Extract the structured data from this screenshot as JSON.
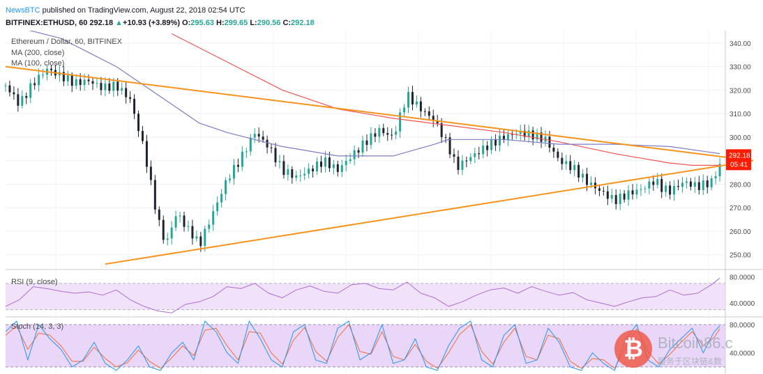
{
  "header": {
    "publisher": "NewsBTC",
    "published_text": " published on TradingView.com, August 22, 2018 02:54 UTC",
    "symbol": "BITFINEX:ETHUSD, 60",
    "last": "292.18",
    "change_arrow": "▲",
    "change": "+10.93 (+3.89%)",
    "o_label": "O:",
    "o_value": "295.63",
    "h_label": "H:",
    "h_value": "299.65",
    "l_label": "L:",
    "l_value": "290.56",
    "c_label": "C:",
    "c_value": "292.18"
  },
  "legend": {
    "title": "Ethereum / Dollar, 60, BITFINEX",
    "ma200": "MA (200, close)",
    "ma100": "MA (100, close)"
  },
  "indicators": {
    "rsi_label": "RSI (9, close)",
    "stoch_label": "Stoch (14, 3, 3)"
  },
  "price_tag": {
    "value": "292.18",
    "countdown": "05:41"
  },
  "watermark": {
    "text": "Bitcoin86.c",
    "subtext": "服务于区块链&数"
  },
  "colors": {
    "up_candle": "#26a69a",
    "down_candle": "#1f2330",
    "ma200": "#ef5350",
    "ma100": "#7b7bc7",
    "trendline": "#f7931a",
    "rsi_line": "#b06ad9",
    "rsi_band": "#e9d5f7",
    "stoch_k": "#2196f3",
    "stoch_d": "#ef6c3a",
    "stoch_band": "#e1c4f5",
    "price_tag": "#ff1a00",
    "grid": "#eef0f3"
  },
  "chart_data": [
    {
      "type": "line",
      "title": "Ethereum / Dollar, 60, BITFINEX",
      "y_axis_ticks": [
        "250.00",
        "260.00",
        "270.00",
        "280.00",
        "290.00",
        "300.00",
        "310.00",
        "320.00",
        "330.00",
        "340.00"
      ],
      "ylim": [
        244,
        345
      ],
      "x_index_range": [
        0,
        260
      ],
      "grid": true,
      "series": [
        {
          "name": "Ethereum / Dollar",
          "x": [
            0,
            5,
            10,
            15,
            20,
            25,
            30,
            35,
            40,
            45,
            50,
            55,
            58,
            60,
            62,
            65,
            68,
            70,
            75,
            80,
            85,
            90,
            95,
            100,
            105,
            110,
            115,
            120,
            125,
            130,
            135,
            140,
            145,
            150,
            155,
            160,
            163,
            166,
            170,
            175,
            180,
            185,
            190,
            195,
            200,
            205,
            210,
            215,
            220,
            225,
            230,
            235,
            236,
            240,
            245,
            250,
            255,
            258,
            260
          ],
          "y": [
            322,
            314,
            323,
            329,
            326,
            323,
            324,
            321,
            322,
            316,
            295,
            265,
            254,
            262,
            268,
            262,
            258,
            254,
            268,
            282,
            291,
            302,
            296,
            286,
            283,
            286,
            290,
            286,
            292,
            298,
            303,
            300,
            318,
            312,
            307,
            296,
            287,
            290,
            293,
            297,
            300,
            302,
            301,
            299,
            290,
            287,
            281,
            277,
            273,
            276,
            278,
            282,
            279,
            277,
            281,
            279,
            281,
            288,
            297
          ]
        },
        {
          "name": "MA (200, close)",
          "x": [
            60,
            80,
            100,
            120,
            140,
            160,
            180,
            200,
            220,
            240,
            248,
            258
          ],
          "y": [
            344,
            332,
            320,
            312,
            308,
            305,
            302,
            298,
            293,
            289,
            288,
            288
          ]
        },
        {
          "name": "MA (100, close)",
          "x": [
            0,
            20,
            40,
            60,
            70,
            80,
            100,
            120,
            140,
            155,
            160,
            180,
            200,
            220,
            240,
            258
          ],
          "y": [
            348,
            342,
            330,
            314,
            306,
            302,
            296,
            292,
            292,
            297,
            299,
            299,
            297,
            297,
            296,
            293
          ]
        },
        {
          "name": "Upper trendline",
          "x": [
            0,
            270
          ],
          "y": [
            330,
            290
          ]
        },
        {
          "name": "Lower trendline",
          "x": [
            36,
            270
          ],
          "y": [
            246,
            290
          ]
        }
      ],
      "last_price": 292.18
    },
    {
      "type": "line",
      "title": "RSI (9, close)",
      "y_axis_ticks": [
        "40.0000",
        "80.0000"
      ],
      "ylim": [
        20,
        90
      ],
      "band": [
        30,
        70
      ],
      "series": [
        {
          "name": "RSI",
          "x": [
            0,
            5,
            10,
            15,
            20,
            25,
            30,
            35,
            40,
            45,
            50,
            55,
            60,
            65,
            70,
            75,
            80,
            85,
            90,
            95,
            100,
            105,
            110,
            115,
            120,
            125,
            130,
            135,
            140,
            145,
            150,
            155,
            160,
            165,
            170,
            175,
            180,
            185,
            190,
            195,
            200,
            205,
            210,
            215,
            220,
            225,
            230,
            235,
            240,
            245,
            250,
            255,
            258
          ],
          "y": [
            35,
            45,
            65,
            62,
            58,
            55,
            57,
            52,
            60,
            45,
            35,
            28,
            25,
            38,
            42,
            50,
            65,
            62,
            70,
            55,
            48,
            60,
            66,
            58,
            55,
            68,
            70,
            62,
            60,
            72,
            55,
            48,
            35,
            42,
            52,
            60,
            63,
            55,
            65,
            58,
            52,
            56,
            45,
            40,
            35,
            42,
            48,
            50,
            60,
            52,
            55,
            68,
            78
          ]
        }
      ]
    },
    {
      "type": "line",
      "title": "Stoch (14, 3, 3)",
      "y_axis_ticks": [
        "40.0000",
        "80.0000"
      ],
      "ylim": [
        10,
        90
      ],
      "band": [
        20,
        80
      ],
      "series": [
        {
          "name": "K",
          "x": [
            0,
            4,
            8,
            12,
            16,
            20,
            24,
            28,
            32,
            36,
            40,
            44,
            48,
            52,
            56,
            60,
            64,
            68,
            72,
            76,
            80,
            84,
            88,
            92,
            96,
            100,
            104,
            108,
            112,
            116,
            120,
            124,
            128,
            132,
            136,
            140,
            144,
            148,
            152,
            156,
            160,
            164,
            168,
            172,
            176,
            180,
            184,
            188,
            192,
            196,
            200,
            204,
            208,
            212,
            216,
            220,
            224,
            228,
            232,
            236,
            240,
            244,
            248,
            252,
            256,
            258
          ],
          "y": [
            70,
            85,
            30,
            80,
            60,
            45,
            20,
            30,
            55,
            25,
            15,
            30,
            50,
            20,
            15,
            40,
            55,
            30,
            85,
            70,
            40,
            25,
            85,
            60,
            30,
            20,
            70,
            80,
            30,
            25,
            75,
            85,
            30,
            40,
            80,
            25,
            30,
            60,
            20,
            15,
            50,
            75,
            85,
            30,
            20,
            65,
            80,
            25,
            30,
            75,
            55,
            20,
            15,
            40,
            25,
            15,
            60,
            80,
            30,
            20,
            45,
            60,
            75,
            40,
            70,
            78
          ]
        },
        {
          "name": "D",
          "x": [
            0,
            4,
            8,
            12,
            16,
            20,
            24,
            28,
            32,
            36,
            40,
            44,
            48,
            52,
            56,
            60,
            64,
            68,
            72,
            76,
            80,
            84,
            88,
            92,
            96,
            100,
            104,
            108,
            112,
            116,
            120,
            124,
            128,
            132,
            136,
            140,
            144,
            148,
            152,
            156,
            160,
            164,
            168,
            172,
            176,
            180,
            184,
            188,
            192,
            196,
            200,
            204,
            208,
            212,
            216,
            220,
            224,
            228,
            232,
            236,
            240,
            244,
            248,
            252,
            256,
            258
          ],
          "y": [
            65,
            78,
            45,
            68,
            65,
            50,
            28,
            28,
            48,
            32,
            20,
            26,
            44,
            28,
            18,
            33,
            50,
            36,
            72,
            75,
            50,
            30,
            70,
            68,
            40,
            24,
            58,
            76,
            42,
            28,
            62,
            80,
            42,
            38,
            70,
            35,
            30,
            52,
            28,
            18,
            40,
            66,
            80,
            42,
            24,
            55,
            75,
            35,
            30,
            65,
            60,
            28,
            18,
            32,
            30,
            18,
            48,
            74,
            42,
            24,
            38,
            55,
            70,
            50,
            62,
            74
          ]
        }
      ]
    }
  ]
}
